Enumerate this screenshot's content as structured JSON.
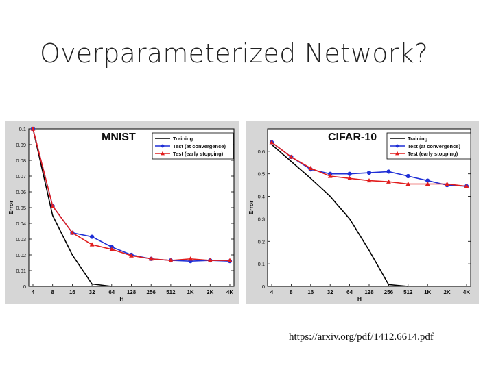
{
  "slide": {
    "title": "Overparameterized Network?",
    "source": "https://arxiv.org/pdf/1412.6614.pdf"
  },
  "chart_data": [
    {
      "type": "line",
      "title": "MNIST",
      "xlabel": "H",
      "ylabel": "Error",
      "categories": [
        "4",
        "8",
        "16",
        "32",
        "64",
        "128",
        "256",
        "512",
        "1K",
        "2K",
        "4K"
      ],
      "ylim": [
        0,
        0.1
      ],
      "yticks": [
        "0",
        "0.01",
        "0.02",
        "0.03",
        "0.04",
        "0.05",
        "0.06",
        "0.07",
        "0.08",
        "0.09",
        "0.1"
      ],
      "legend_position": "top-right",
      "series": [
        {
          "name": "Training",
          "color": "#000000",
          "marker": "none",
          "values": [
            0.1,
            0.045,
            0.02,
            0.0015,
            0.0,
            null,
            null,
            null,
            null,
            null,
            null
          ]
        },
        {
          "name": "Test (at convergence)",
          "color": "#1f2fd6",
          "marker": "circle",
          "values": [
            0.1,
            0.051,
            0.034,
            0.0315,
            0.025,
            0.02,
            0.0175,
            0.0165,
            0.016,
            0.0165,
            0.016
          ]
        },
        {
          "name": "Test (early stopping)",
          "color": "#e11d1d",
          "marker": "triangle",
          "values": [
            0.1,
            0.051,
            0.034,
            0.0265,
            0.0235,
            0.0195,
            0.0175,
            0.0165,
            0.0175,
            0.0165,
            0.0165
          ]
        }
      ]
    },
    {
      "type": "line",
      "title": "CIFAR-10",
      "xlabel": "H",
      "ylabel": "Error",
      "categories": [
        "4",
        "8",
        "16",
        "32",
        "64",
        "128",
        "256",
        "512",
        "1K",
        "2K",
        "4K"
      ],
      "ylim": [
        0,
        0.7
      ],
      "yticks": [
        "0",
        "0.1",
        "0.2",
        "0.3",
        "0.4",
        "0.5",
        "0.6"
      ],
      "legend_position": "top-right",
      "series": [
        {
          "name": "Training",
          "color": "#000000",
          "marker": "none",
          "values": [
            0.63,
            0.555,
            0.48,
            0.4,
            0.3,
            0.16,
            0.008,
            0.0,
            null,
            null,
            null
          ]
        },
        {
          "name": "Test (at convergence)",
          "color": "#1f2fd6",
          "marker": "circle",
          "values": [
            0.64,
            0.575,
            0.52,
            0.5,
            0.5,
            0.505,
            0.51,
            0.49,
            0.47,
            0.45,
            0.445
          ]
        },
        {
          "name": "Test (early stopping)",
          "color": "#e11d1d",
          "marker": "triangle",
          "values": [
            0.64,
            0.575,
            0.525,
            0.49,
            0.48,
            0.47,
            0.465,
            0.455,
            0.455,
            0.455,
            0.445
          ]
        }
      ]
    }
  ]
}
